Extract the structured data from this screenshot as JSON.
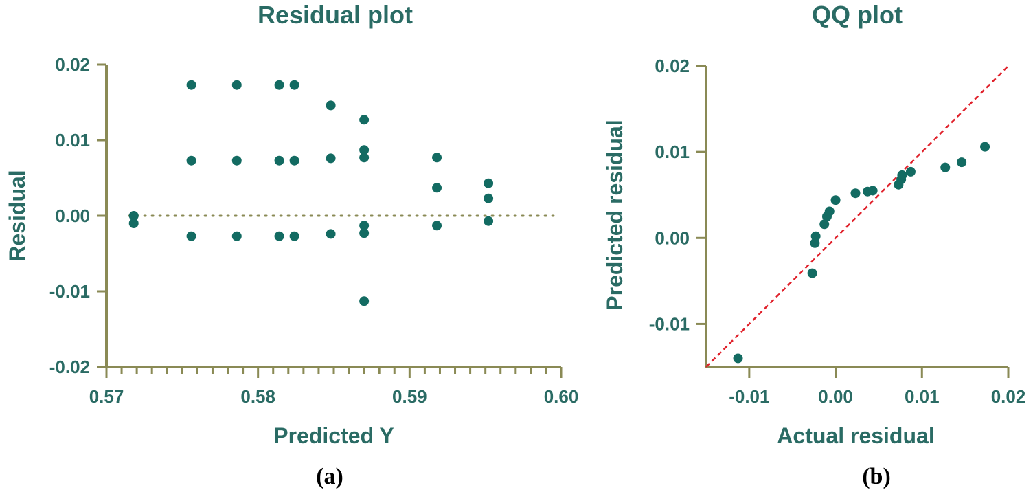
{
  "colors": {
    "axis": "#8a8a55",
    "text": "#2a6b64",
    "point": "#136b62",
    "zero_line": "#8a8a55",
    "reference_line": "#e0202a"
  },
  "chart_data": [
    {
      "type": "scatter",
      "title": "Residual plot",
      "xlabel": "Predicted Y",
      "ylabel": "Residual",
      "panel_label": "(a)",
      "xlim": [
        0.57,
        0.6
      ],
      "ylim": [
        -0.02,
        0.02
      ],
      "xticks": [
        0.57,
        0.58,
        0.59,
        0.6
      ],
      "xtick_labels": [
        "0.57",
        "0.58",
        "0.59",
        "0.60"
      ],
      "yticks": [
        0.02,
        0.01,
        0.0,
        -0.01,
        -0.02
      ],
      "ytick_labels": [
        "0.02",
        "0.01",
        "0.00",
        "-0.01",
        "-0.02"
      ],
      "zero_line": "dotted",
      "points": [
        [
          0.5718,
          0.0
        ],
        [
          0.5718,
          -0.001
        ],
        [
          0.5756,
          0.0173
        ],
        [
          0.5756,
          0.0073
        ],
        [
          0.5756,
          -0.0027
        ],
        [
          0.5786,
          0.0173
        ],
        [
          0.5786,
          0.0073
        ],
        [
          0.5786,
          -0.0027
        ],
        [
          0.5814,
          0.0173
        ],
        [
          0.5814,
          0.0073
        ],
        [
          0.5814,
          -0.0027
        ],
        [
          0.5824,
          0.0173
        ],
        [
          0.5824,
          0.0073
        ],
        [
          0.5824,
          -0.0027
        ],
        [
          0.5848,
          0.0146
        ],
        [
          0.5848,
          0.0076
        ],
        [
          0.5848,
          -0.0024
        ],
        [
          0.587,
          0.0127
        ],
        [
          0.587,
          0.0087
        ],
        [
          0.587,
          0.0077
        ],
        [
          0.587,
          -0.0013
        ],
        [
          0.587,
          -0.0023
        ],
        [
          0.587,
          -0.0113
        ],
        [
          0.5918,
          0.0077
        ],
        [
          0.5918,
          0.0037
        ],
        [
          0.5918,
          -0.0013
        ],
        [
          0.5952,
          0.0043
        ],
        [
          0.5952,
          0.0023
        ],
        [
          0.5952,
          -0.0007
        ]
      ]
    },
    {
      "type": "scatter",
      "title": "QQ plot",
      "xlabel": "Actual residual",
      "ylabel": "Predicted residual",
      "panel_label": "(b)",
      "xlim": [
        -0.015,
        0.02
      ],
      "ylim": [
        -0.015,
        0.02
      ],
      "xticks": [
        -0.01,
        0.0,
        0.01,
        0.02
      ],
      "xtick_labels": [
        "-0.01",
        "0.00",
        "0.01",
        "0.02"
      ],
      "yticks": [
        0.02,
        0.01,
        0.0,
        -0.01
      ],
      "ytick_labels": [
        "0.02",
        "0.01",
        "0.00",
        "-0.01"
      ],
      "reference_line": "y = x, dashed",
      "points": [
        [
          -0.0113,
          -0.014
        ],
        [
          -0.0027,
          -0.0041
        ],
        [
          -0.0024,
          -0.0006
        ],
        [
          -0.0023,
          0.0002
        ],
        [
          -0.0013,
          0.0016
        ],
        [
          -0.001,
          0.0025
        ],
        [
          -0.0007,
          0.0031
        ],
        [
          0.0,
          0.0044
        ],
        [
          0.0023,
          0.0052
        ],
        [
          0.0037,
          0.0054
        ],
        [
          0.0043,
          0.0055
        ],
        [
          0.0073,
          0.0062
        ],
        [
          0.0076,
          0.0068
        ],
        [
          0.0077,
          0.0073
        ],
        [
          0.0087,
          0.0077
        ],
        [
          0.0127,
          0.0082
        ],
        [
          0.0146,
          0.0088
        ],
        [
          0.0173,
          0.0106
        ]
      ]
    }
  ]
}
